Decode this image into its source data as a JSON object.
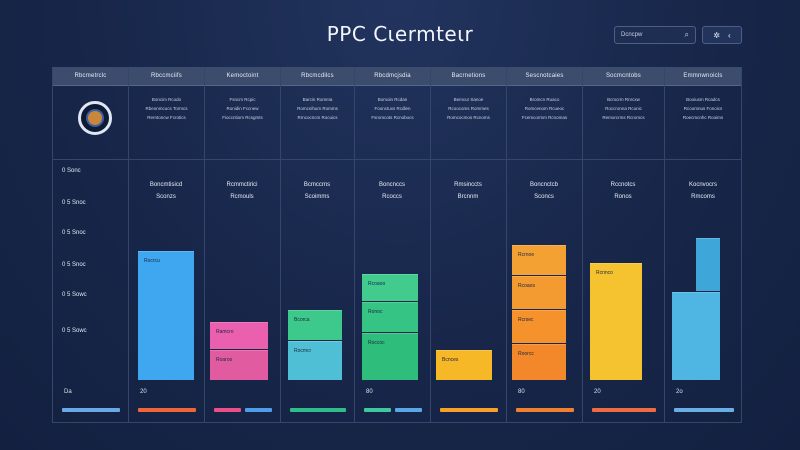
{
  "app": {
    "title": "PPC Cιermteιr"
  },
  "search": {
    "placeholder": "Dcncpw",
    "icon": "search-icon"
  },
  "toolbar": {
    "icons": [
      "settings-icon",
      "chevron-left-icon"
    ]
  },
  "columns": [
    {
      "header": "Rbcmetrclc",
      "meta": []
    },
    {
      "header": "Rbccmciifs",
      "meta": [
        "Boncim   Rcodo",
        "Rbeonmcucs Tormcs",
        "Rerntoncw Fcrotics"
      ]
    },
    {
      "header": "Kemoctoint",
      "meta": [
        "Fsncm   Rcpic",
        "Ronidin  Fccnew",
        "Fioccntiom Rcsgmts"
      ]
    },
    {
      "header": "Rbcmcdilcs",
      "meta": [
        "Barcin   Romma",
        "Romcnihum Romms",
        "Rrncocncm Rocuics"
      ]
    },
    {
      "header": "Rbcdmcjsdia",
      "meta": [
        "Bomoin   Rcdan",
        "Foonctuxs Rcdlen",
        "Fsromcots Rcnobocs"
      ]
    },
    {
      "header": "Bacrnetions",
      "meta": [
        "Bemcur   Sanoe",
        "Rcoocoms Rommes",
        "Romcocmos Rcnoms"
      ]
    },
    {
      "header": "Sescnotcaies",
      "meta": [
        "Bromcn  Ruaco",
        "Romcenom Rcueoc",
        "Fcemcormm Rcnomas"
      ]
    },
    {
      "header": "Socmcntobs",
      "meta": [
        "Bcmcrm  Rnrcxw",
        "Roccronna Rcunic",
        "Remorcrms Rcromcs"
      ]
    },
    {
      "header": "Emmnwnoicls",
      "meta": [
        "Booiusm  Rcadcs",
        "Rcoomnus Fonoics",
        "Roecmcnhc Rooims"
      ]
    }
  ],
  "chart_data": {
    "type": "bar",
    "categories": [
      {
        "name": "Boncmtisicd",
        "sub": "Sconzs"
      },
      {
        "name": "Rcmmctirici",
        "sub": "Rcmouls"
      },
      {
        "name": "Bcmccrns",
        "sub": "Scoimms"
      },
      {
        "name": "Boncnccs",
        "sub": "Rcoccs"
      },
      {
        "name": "Rmsinccts",
        "sub": "Brcnnm"
      },
      {
        "name": "Boncnctcb",
        "sub": "Sconcs"
      },
      {
        "name": "Rccnotcs",
        "sub": "Ronos"
      },
      {
        "name": "Kocnvocrs",
        "sub": "Rmcoms"
      }
    ],
    "y_ticks": [
      "0 Sonc",
      "0 5 Snoc",
      "0 5 Snoc",
      "0 5 Snoc",
      "0 5 Sowc",
      "0 5 Sowc"
    ],
    "ylim": [
      0,
      5
    ],
    "segments": [
      [
        {
          "label": "Rocrcu",
          "value": 2.2,
          "color": "#3fa7ef"
        }
      ],
      [
        {
          "label": "Roaros",
          "value": 0.5,
          "color": "#e05ba0"
        },
        {
          "label": "Ramcro",
          "value": 0.45,
          "color": "#ea5fae"
        }
      ],
      [
        {
          "label": "Rocmcr",
          "value": 0.65,
          "color": "#4fbfd5"
        },
        {
          "label": "Bcorca",
          "value": 0.5,
          "color": "#3ec98c"
        }
      ],
      [
        {
          "label": "Roccoc",
          "value": 0.8,
          "color": "#2fbd7c"
        },
        {
          "label": "Ronoc",
          "value": 0.5,
          "color": "#36c484"
        },
        {
          "label": "Rcoaoo",
          "value": 0.45,
          "color": "#41cc8e"
        }
      ],
      [
        {
          "label": "Bcnces",
          "value": 0.5,
          "color": "#f6b827"
        }
      ],
      [
        {
          "label": "Roorcc",
          "value": 0.6,
          "color": "#f2882a"
        },
        {
          "label": "Rcrsec",
          "value": 0.55,
          "color": "#f5922c"
        },
        {
          "label": "Rcoaos",
          "value": 0.55,
          "color": "#f39a30"
        },
        {
          "label": "Rcrnoe",
          "value": 0.5,
          "color": "#f4a134"
        }
      ],
      [
        {
          "label": "Rcnnco",
          "value": 2.0,
          "color": "#f6c330"
        }
      ],
      [
        {
          "label": "",
          "value": 1.5,
          "color": "#4fb5e2"
        },
        {
          "label": "",
          "value": 0.9,
          "color": "#3fa6d9"
        }
      ]
    ],
    "footer_stripes": [
      {
        "label": "Da",
        "colors": [
          "#6aa9e8"
        ]
      },
      {
        "label": "20",
        "colors": [
          "#f0643c"
        ]
      },
      {
        "label": "",
        "colors": [
          "#ea4f8a",
          "#4f9de8"
        ]
      },
      {
        "label": "",
        "colors": [
          "#2fbd8c"
        ]
      },
      {
        "label": "80",
        "colors": [
          "#3fc8a0",
          "#5aa6e8"
        ]
      },
      {
        "label": "",
        "colors": [
          "#f6a02a"
        ]
      },
      {
        "label": "80",
        "colors": [
          "#f08030"
        ]
      },
      {
        "label": "20",
        "colors": [
          "#ef6a40"
        ]
      },
      {
        "label": "2o",
        "colors": [
          "#6aaee6"
        ]
      }
    ],
    "xlabel": "",
    "ylabel": ""
  }
}
